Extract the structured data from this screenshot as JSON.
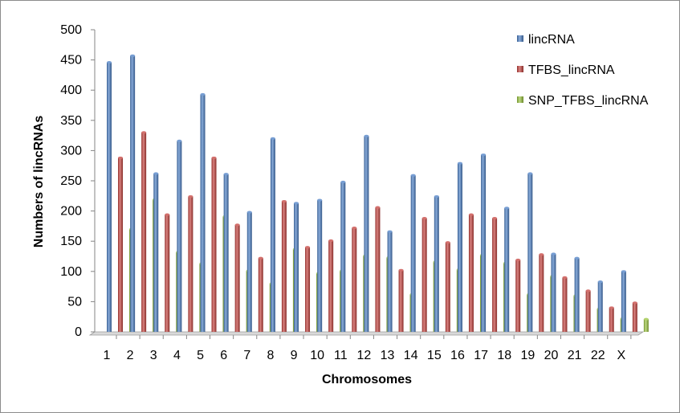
{
  "chart_data": {
    "type": "bar",
    "title": "",
    "xlabel": "Chromosomes",
    "ylabel": "Numbers of lincRNAs",
    "ylim": [
      0,
      500
    ],
    "yticks": [
      0,
      50,
      100,
      150,
      200,
      250,
      300,
      350,
      400,
      450,
      500
    ],
    "grid": false,
    "legend_position": "top-right",
    "categories": [
      "1",
      "2",
      "3",
      "4",
      "5",
      "6",
      "7",
      "8",
      "9",
      "10",
      "11",
      "12",
      "13",
      "14",
      "15",
      "16",
      "17",
      "18",
      "19",
      "20",
      "21",
      "22",
      "X"
    ],
    "series": [
      {
        "name": "lincRNA",
        "color": "#4a7ec4",
        "values": [
          446,
          457,
          262,
          316,
          393,
          261,
          198,
          320,
          213,
          218,
          248,
          324,
          166,
          259,
          224,
          279,
          293,
          205,
          262,
          129,
          122,
          83,
          100
        ]
      },
      {
        "name": "TFBS_lincRNA",
        "color": "#c4403c",
        "values": [
          288,
          330,
          194,
          224,
          288,
          177,
          122,
          216,
          140,
          151,
          172,
          206,
          102,
          188,
          148,
          194,
          188,
          119,
          128,
          90,
          68,
          40,
          48
        ]
      },
      {
        "name": "SNP_TFBS_lincRNA",
        "color": "#9ac43e",
        "values": [
          170,
          219,
          132,
          113,
          191,
          101,
          80,
          137,
          97,
          101,
          126,
          123,
          62,
          116,
          103,
          127,
          114,
          62,
          92,
          60,
          38,
          22,
          21
        ]
      }
    ]
  }
}
